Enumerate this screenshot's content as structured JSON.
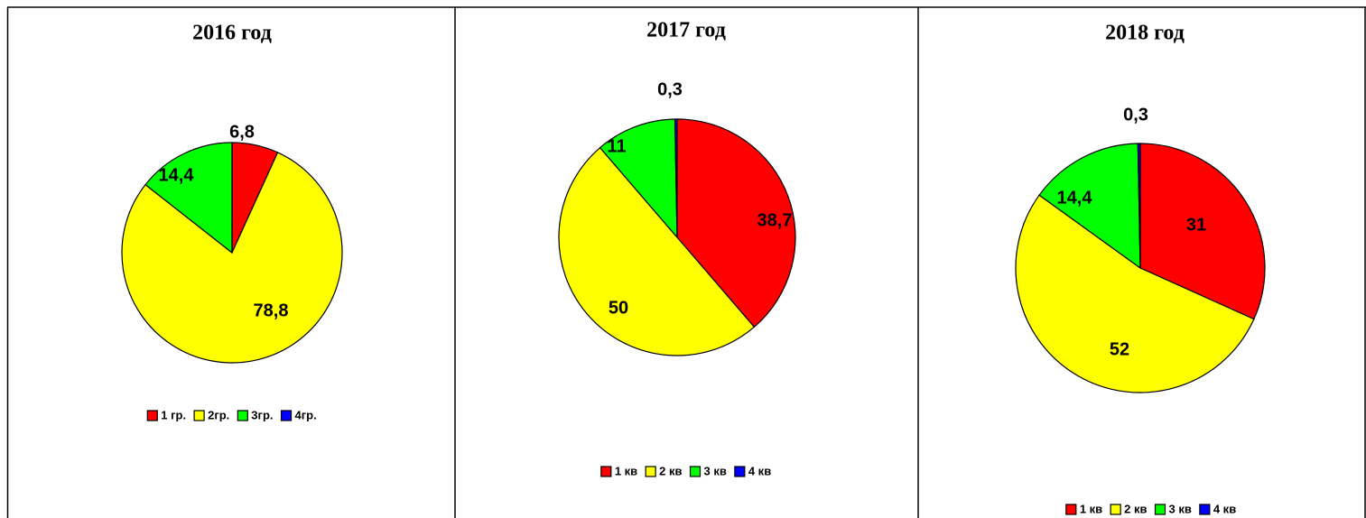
{
  "chart_data": [
    {
      "type": "pie",
      "title": "2016 год",
      "categories": [
        "1 гр.",
        "2гр.",
        "3гр.",
        "4гр."
      ],
      "values": [
        6.8,
        78.8,
        14.4,
        0
      ],
      "value_labels": [
        "6,8",
        "78,8",
        "14,4",
        null
      ],
      "colors": [
        "#ff0000",
        "#ffff00",
        "#00ff00",
        "#0000ff"
      ],
      "legend": "bottom"
    },
    {
      "type": "pie",
      "title": "2017 год",
      "categories": [
        "1 кв",
        "2 кв",
        "3 кв",
        "4 кв"
      ],
      "values": [
        38.7,
        50,
        11,
        0.3
      ],
      "value_labels": [
        "38,7",
        "50",
        "11",
        "0,3"
      ],
      "colors": [
        "#ff0000",
        "#ffff00",
        "#00ff00",
        "#0000ff"
      ],
      "legend": "bottom"
    },
    {
      "type": "pie",
      "title": "2018 год",
      "categories": [
        "1 кв",
        "2 кв",
        "3 кв",
        "4 кв"
      ],
      "values": [
        31,
        52,
        14.4,
        0.3
      ],
      "value_labels": [
        "31",
        "52",
        "14,4",
        "0,3"
      ],
      "colors": [
        "#ff0000",
        "#ffff00",
        "#00ff00",
        "#0000ff"
      ],
      "legend": "bottom"
    }
  ]
}
